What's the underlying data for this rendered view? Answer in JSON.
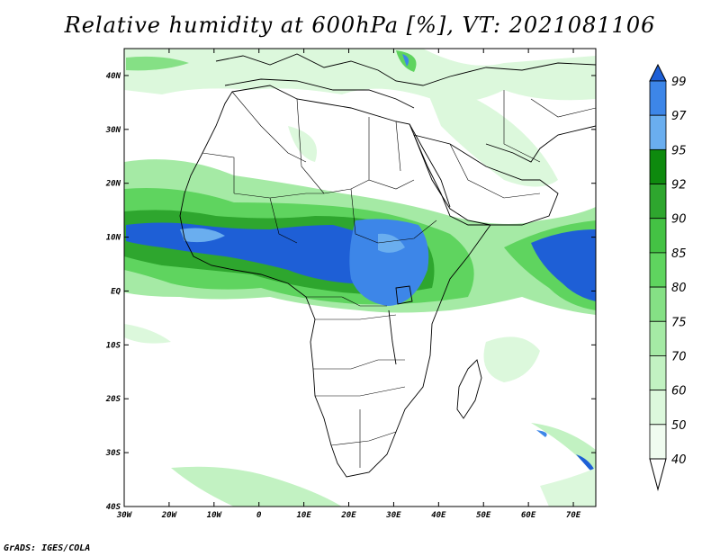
{
  "title": "Relative humidity at 600hPa [%], VT: 2021081106",
  "credit": "GrADS: IGES/COLA",
  "map": {
    "lon_range": [
      -30,
      75
    ],
    "lat_range": [
      -40,
      45
    ],
    "lat_ticks": [
      "40N",
      "30N",
      "20N",
      "10N",
      "EQ",
      "10S",
      "20S",
      "30S",
      "40S"
    ],
    "lon_ticks": [
      "30W",
      "20W",
      "10W",
      "0",
      "10E",
      "20E",
      "30E",
      "40E",
      "50E",
      "60E",
      "70E"
    ],
    "variable_units": "%"
  },
  "colorbar": {
    "levels": [
      "99",
      "97",
      "95",
      "92",
      "90",
      "85",
      "80",
      "75",
      "70",
      "60",
      "50",
      "40"
    ],
    "colors": [
      "#1e5fd6",
      "#3d86e8",
      "#6aaeef",
      "#0e8a0e",
      "#2ea62e",
      "#44c244",
      "#5fd45f",
      "#85e085",
      "#a5eaa5",
      "#c2f2c2",
      "#dcf8dc",
      "#f0fcf0"
    ]
  }
}
